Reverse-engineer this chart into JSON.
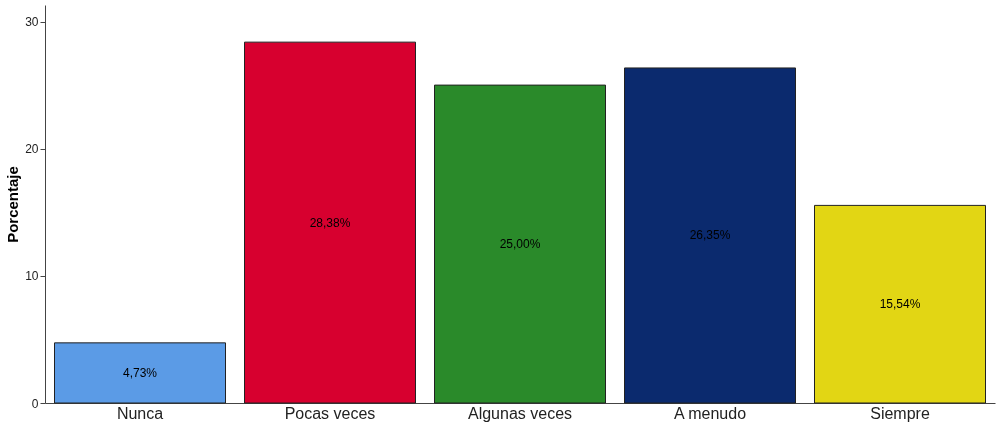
{
  "chart_data": {
    "type": "bar",
    "ylabel": "Porcentaje",
    "categories": [
      "Nunca",
      "Pocas veces",
      "Algunas veces",
      "A menudo",
      "Siempre"
    ],
    "values": [
      4.73,
      28.38,
      25.0,
      26.35,
      15.54
    ],
    "colors": [
      "#5b9be6",
      "#d7002f",
      "#2a8a2a",
      "#0b2a6e",
      "#e2d614"
    ],
    "value_labels": [
      "4,73%",
      "28,38%",
      "25,00%",
      "26,35%",
      "15,54%"
    ],
    "ylim": [
      0,
      31.3
    ],
    "yticks": [
      0,
      10,
      20,
      30
    ],
    "grid": false
  }
}
